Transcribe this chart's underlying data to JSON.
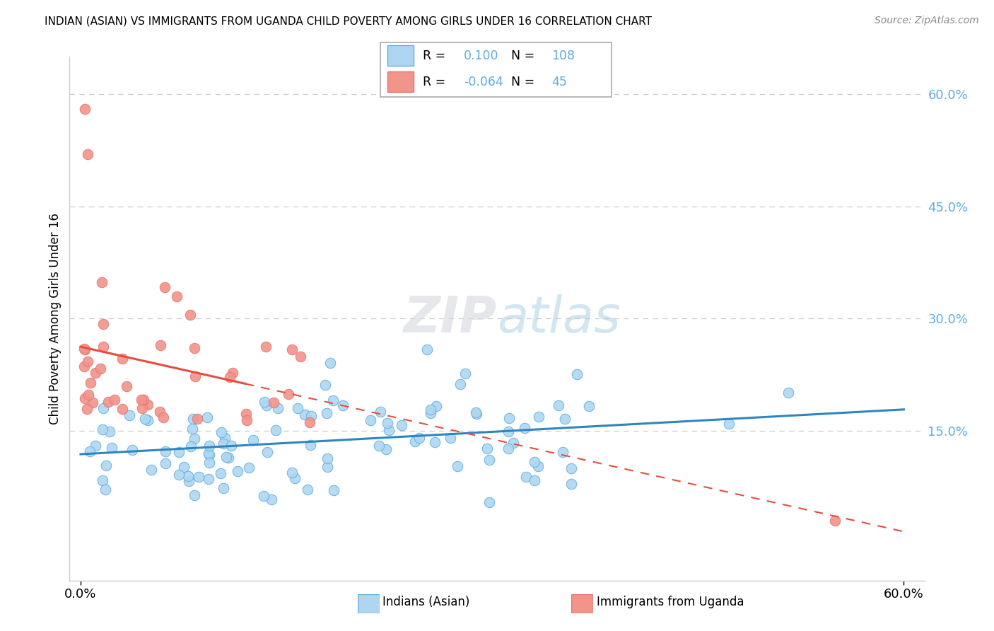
{
  "title": "INDIAN (ASIAN) VS IMMIGRANTS FROM UGANDA CHILD POVERTY AMONG GIRLS UNDER 16 CORRELATION CHART",
  "source": "Source: ZipAtlas.com",
  "ylabel": "Child Poverty Among Girls Under 16",
  "r_indian": 0.1,
  "n_indian": 108,
  "r_uganda": -0.064,
  "n_uganda": 45,
  "xlim": [
    0.0,
    0.6
  ],
  "ylim": [
    -0.05,
    0.65
  ],
  "color_indian_fill": "#AED6F1",
  "color_indian_edge": "#5DADE2",
  "color_uganda_fill": "#F1948A",
  "color_uganda_edge": "#E57373",
  "color_indian_line": "#2E86C1",
  "color_uganda_line": "#E74C3C",
  "color_grid": "#CCCCCC",
  "color_right_ticks": "#5DADE2",
  "watermark_color": "#D5D8DC",
  "right_ytick_vals": [
    0.15,
    0.3,
    0.45,
    0.6
  ],
  "right_ytick_labels": [
    "15.0%",
    "30.0%",
    "45.0%",
    "60.0%"
  ]
}
